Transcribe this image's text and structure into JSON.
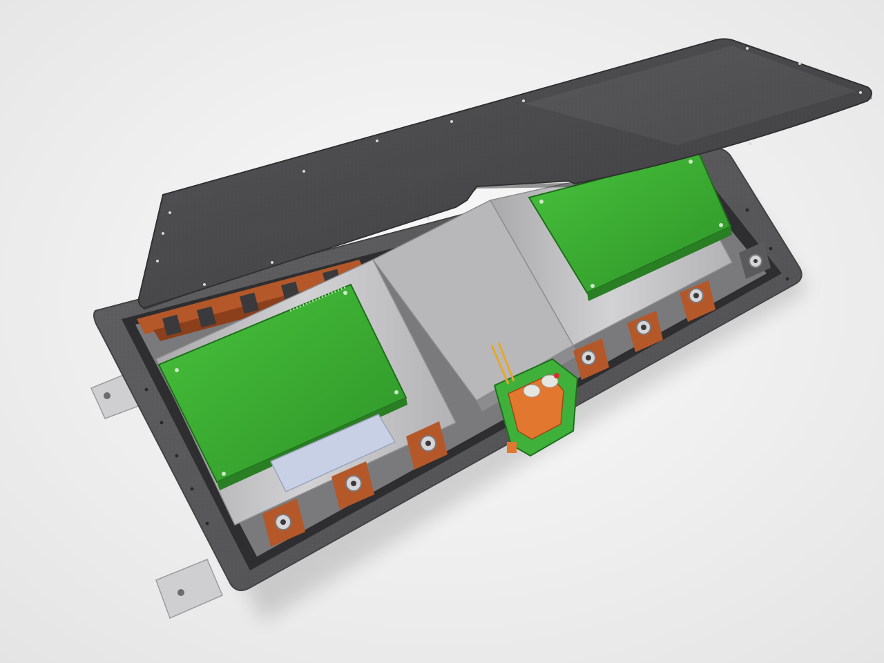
{
  "image": {
    "subject": "battery-pack-enclosure-render",
    "palette": {
      "background": "#f1f1f1",
      "lid": "#4a4a4c",
      "enclosure": "#5c5c5e",
      "inner_tray": "#b9b9bb",
      "cover_plate": "#c6c6c8",
      "pcb": "#3eae34",
      "busbar": "#b4582a",
      "connector_green": "#3fb13a",
      "connector_orange": "#e2782f",
      "bracket": "#cfcfd1",
      "insulator": "#c8d0e6"
    },
    "terminals_front_row": 4,
    "terminals_back_row": 3
  }
}
